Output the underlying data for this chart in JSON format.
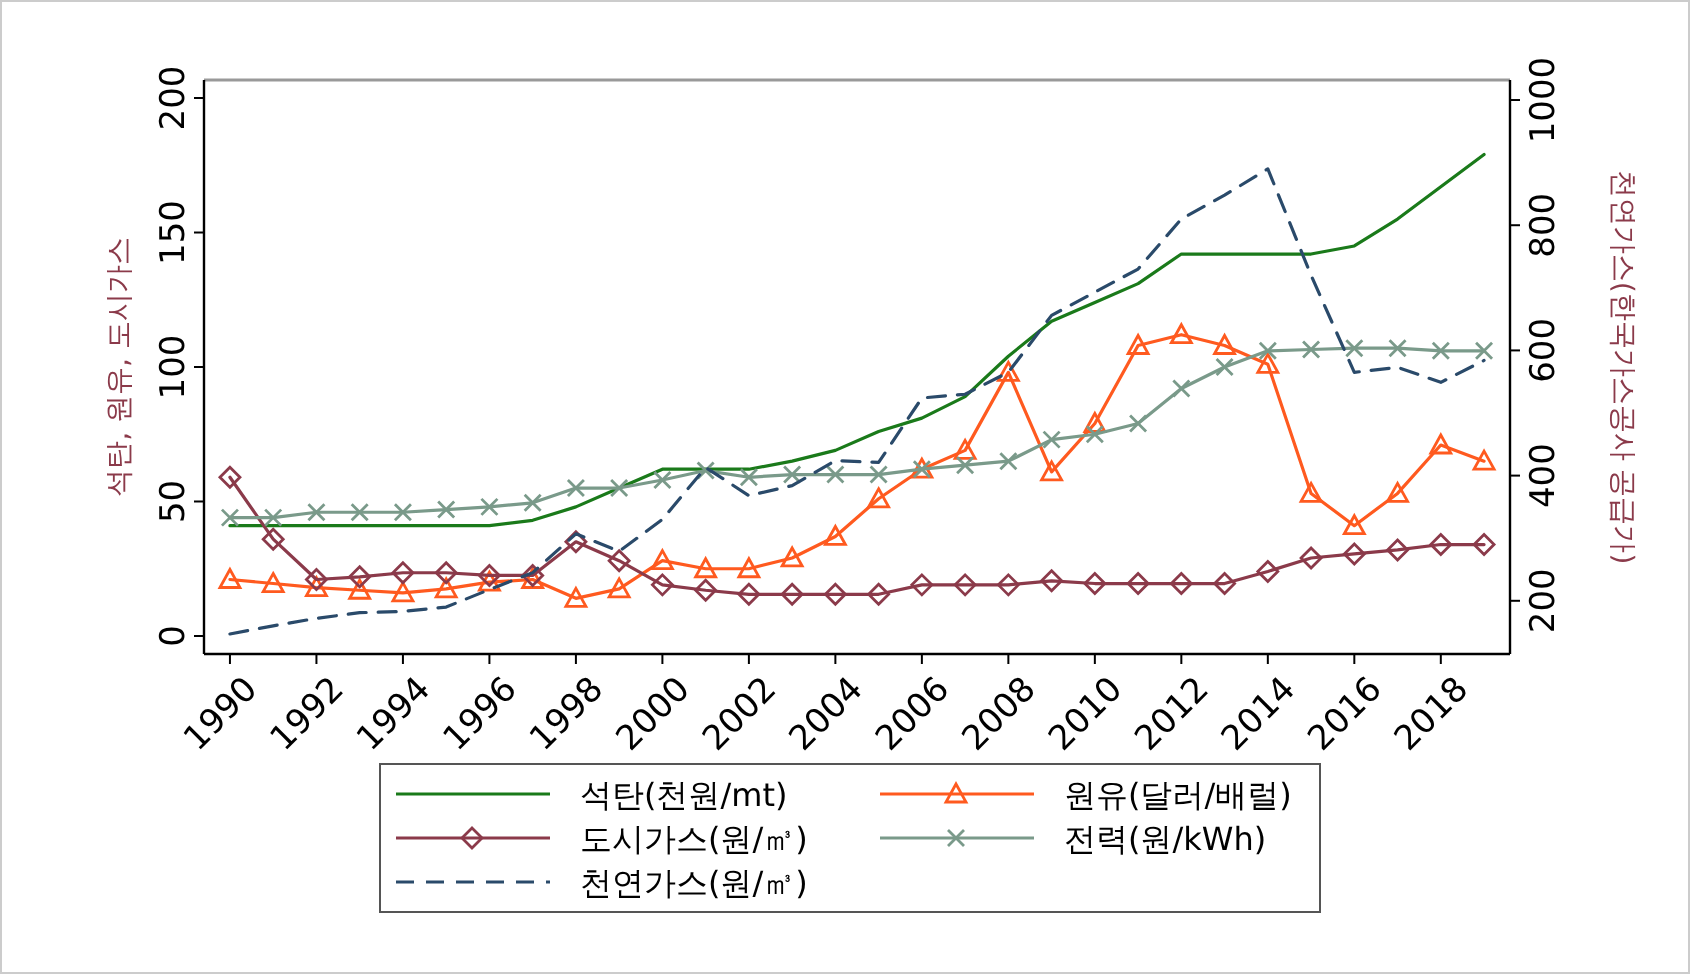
{
  "chart_data": {
    "type": "line",
    "ylabel": "석탄, 원유, 도시가스",
    "y2label": "천연가스(한국가스공사 공급가)",
    "x": [
      1990,
      1991,
      1992,
      1993,
      1994,
      1995,
      1996,
      1997,
      1998,
      1999,
      2000,
      2001,
      2002,
      2003,
      2004,
      2005,
      2006,
      2007,
      2008,
      2009,
      2010,
      2011,
      2012,
      2013,
      2014,
      2015,
      2016,
      2017,
      2018,
      2019
    ],
    "xlim": [
      1989.4,
      2019.6
    ],
    "xticks": [
      1990,
      1992,
      1994,
      1996,
      1998,
      2000,
      2002,
      2004,
      2006,
      2008,
      2010,
      2012,
      2014,
      2016,
      2018
    ],
    "ylim": [
      -6.7,
      206.7
    ],
    "yticks": [
      0,
      50,
      100,
      150,
      200
    ],
    "y2lim": [
      115,
      1032
    ],
    "y2ticks": [
      200,
      400,
      600,
      800,
      1000
    ],
    "legend": "bottom",
    "grid": false,
    "series": [
      {
        "name": "석탄(천원/mt)",
        "color": "#1a7a1a",
        "marker": "none",
        "line_style": "solid",
        "values": [
          41,
          41,
          41,
          41,
          41,
          41,
          41,
          43,
          48,
          55,
          62,
          62,
          62,
          65,
          69,
          76,
          81,
          89,
          104,
          117,
          124,
          131,
          142,
          142,
          142,
          142,
          145,
          155,
          167,
          179
        ]
      },
      {
        "name": "원유(달러/배럴)",
        "color": "#ff5a1f",
        "marker": "triangle",
        "line_style": "solid",
        "values": [
          21,
          19.5,
          18,
          17,
          16,
          17.5,
          20,
          21,
          14,
          17.5,
          28,
          25,
          25,
          29,
          37,
          51,
          62,
          69,
          98,
          61,
          79,
          108,
          112,
          108,
          101,
          53,
          41,
          53,
          71,
          65
        ]
      },
      {
        "name": "도시가스(원/㎥)",
        "color": "#8b3a4a",
        "marker": "diamond",
        "line_style": "solid",
        "values": [
          59,
          36,
          21,
          22,
          23.5,
          23.5,
          22.5,
          22.5,
          35,
          28,
          19,
          17,
          15.5,
          15.5,
          15.5,
          15.5,
          19,
          19,
          19,
          20.5,
          19.5,
          19.5,
          19.5,
          19.5,
          24,
          29,
          30.5,
          32,
          34,
          34
        ]
      },
      {
        "name": "전력(원/kWh)",
        "color": "#7a9a8a",
        "marker": "cross",
        "line_style": "solid",
        "values": [
          44,
          44,
          46,
          46,
          46,
          47,
          48,
          49.5,
          55,
          55,
          58,
          61.5,
          59,
          60,
          60,
          60,
          62,
          63.5,
          65,
          73,
          75,
          79,
          92,
          100,
          106,
          106.5,
          107,
          107,
          106,
          106
        ]
      },
      {
        "name": "천연가스(원/㎥)",
        "color": "#2a4a6a",
        "marker": "none",
        "line_style": "dashed",
        "axis": "y2",
        "values": [
          147,
          160,
          172,
          181,
          183,
          190,
          218,
          245,
          307,
          279,
          330,
          413,
          368,
          384,
          424,
          421,
          524,
          530,
          565,
          656,
          693,
          730,
          810,
          848,
          890,
          720,
          565,
          573,
          549,
          584
        ]
      }
    ]
  }
}
